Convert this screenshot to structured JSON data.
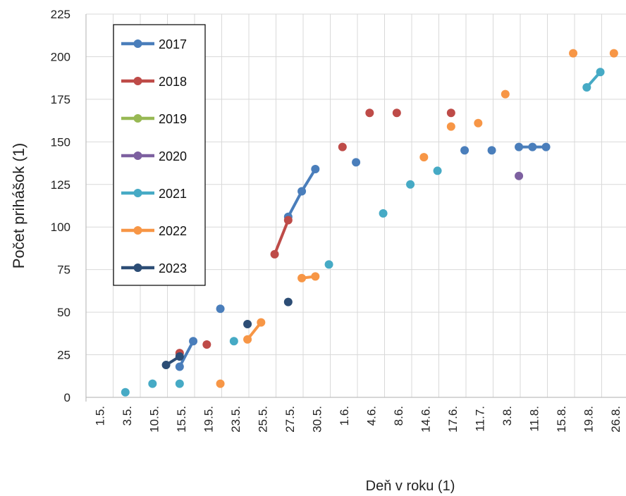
{
  "chart_data": {
    "type": "line",
    "xlabel": "Deň v roku (1)",
    "ylabel": "Počet prihášok (1)",
    "categories": [
      "1.5.",
      "3.5.",
      "10.5.",
      "15.5.",
      "19.5.",
      "23.5.",
      "25.5.",
      "27.5.",
      "30.5.",
      "1.6.",
      "4.6.",
      "8.6.",
      "14.6.",
      "17.6.",
      "11.7.",
      "3.8.",
      "11.8.",
      "15.8.",
      "19.8.",
      "26.8."
    ],
    "ylim": [
      0,
      225
    ],
    "yticks": [
      0,
      25,
      50,
      75,
      100,
      125,
      150,
      175,
      200,
      225
    ],
    "grid": true,
    "legend_position": "top-left",
    "series": [
      {
        "name": "2017",
        "color": "#4a7ebb",
        "points": [
          {
            "x": 3.45,
            "y": 18
          },
          {
            "x": 3.95,
            "y": 33
          },
          {
            "x": 4.95,
            "y": 52
          },
          {
            "x": 7.45,
            "y": 106
          },
          {
            "x": 7.95,
            "y": 121
          },
          {
            "x": 8.45,
            "y": 134
          },
          {
            "x": 9.95,
            "y": 138
          },
          {
            "x": 13.95,
            "y": 145
          },
          {
            "x": 14.95,
            "y": 145
          },
          {
            "x": 15.95,
            "y": 147
          },
          {
            "x": 16.45,
            "y": 147
          },
          {
            "x": 16.95,
            "y": 147
          }
        ]
      },
      {
        "name": "2018",
        "color": "#be4b48",
        "points": [
          {
            "x": 3.45,
            "y": 26
          },
          {
            "x": 4.45,
            "y": 31
          },
          {
            "x": 6.95,
            "y": 84
          },
          {
            "x": 7.45,
            "y": 104
          },
          {
            "x": 9.45,
            "y": 147
          },
          {
            "x": 10.45,
            "y": 167
          },
          {
            "x": 11.45,
            "y": 167
          },
          {
            "x": 13.45,
            "y": 167
          }
        ]
      },
      {
        "name": "2019",
        "color": "#98b954",
        "points": []
      },
      {
        "name": "2020",
        "color": "#7d60a0",
        "points": [
          {
            "x": 15.95,
            "y": 130
          }
        ]
      },
      {
        "name": "2021",
        "color": "#46aac5",
        "points": [
          {
            "x": 1.45,
            "y": 3
          },
          {
            "x": 2.45,
            "y": 8
          },
          {
            "x": 3.45,
            "y": 8
          },
          {
            "x": 5.45,
            "y": 33
          },
          {
            "x": 8.95,
            "y": 78
          },
          {
            "x": 10.95,
            "y": 108
          },
          {
            "x": 11.95,
            "y": 125
          },
          {
            "x": 12.95,
            "y": 133
          },
          {
            "x": 18.45,
            "y": 182
          },
          {
            "x": 18.95,
            "y": 191
          }
        ]
      },
      {
        "name": "2022",
        "color": "#f79646",
        "points": [
          {
            "x": 4.95,
            "y": 8
          },
          {
            "x": 5.95,
            "y": 34
          },
          {
            "x": 6.45,
            "y": 44
          },
          {
            "x": 7.95,
            "y": 70
          },
          {
            "x": 8.45,
            "y": 71
          },
          {
            "x": 12.45,
            "y": 141
          },
          {
            "x": 13.45,
            "y": 159
          },
          {
            "x": 14.45,
            "y": 161
          },
          {
            "x": 15.45,
            "y": 178
          },
          {
            "x": 17.95,
            "y": 202
          },
          {
            "x": 19.45,
            "y": 202
          }
        ]
      },
      {
        "name": "2023",
        "color": "#2c4d75",
        "points": [
          {
            "x": 2.95,
            "y": 19
          },
          {
            "x": 3.45,
            "y": 24
          },
          {
            "x": 5.95,
            "y": 43
          },
          {
            "x": 7.45,
            "y": 56
          }
        ]
      }
    ],
    "segments": [
      {
        "series": 0,
        "from": 0,
        "to": 1
      },
      {
        "series": 0,
        "from": 3,
        "to": 4
      },
      {
        "series": 0,
        "from": 4,
        "to": 5
      },
      {
        "series": 0,
        "from": 9,
        "to": 10
      },
      {
        "series": 0,
        "from": 10,
        "to": 11
      },
      {
        "series": 1,
        "from": 2,
        "to": 3
      },
      {
        "series": 4,
        "from": 8,
        "to": 9
      },
      {
        "series": 5,
        "from": 1,
        "to": 2
      },
      {
        "series": 5,
        "from": 3,
        "to": 4
      },
      {
        "series": 6,
        "from": 0,
        "to": 1
      }
    ]
  }
}
